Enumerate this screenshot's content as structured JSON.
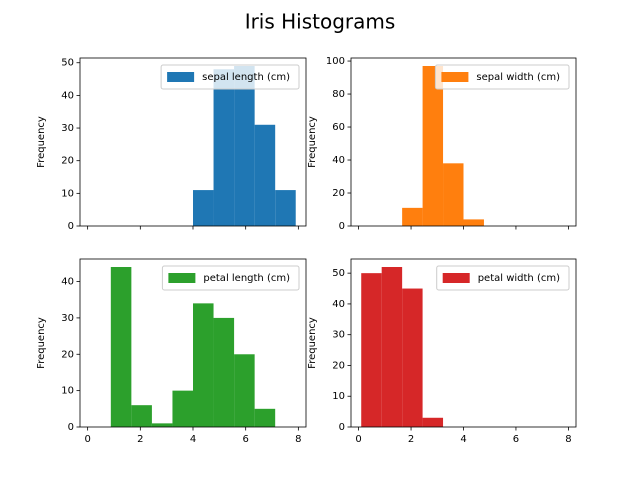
{
  "title": "Iris Histograms",
  "chart_data": [
    {
      "type": "histogram",
      "ylabel": "Frequency",
      "bins": [
        0.1,
        0.88,
        1.66,
        2.44,
        3.22,
        4.0,
        4.78,
        5.56,
        6.34,
        7.12,
        7.9
      ],
      "series": [
        {
          "name": "sepal length (cm)",
          "color": "#1f77b4",
          "values": [
            0,
            0,
            0,
            0,
            0,
            11,
            48,
            49,
            31,
            11
          ]
        }
      ],
      "xlim": [
        -0.29,
        8.29
      ],
      "xticks": [
        0,
        2,
        4,
        6,
        8
      ],
      "xtick_labels": false,
      "ylim": [
        0,
        51.45
      ],
      "yticks": [
        0,
        10,
        20,
        30,
        40,
        50
      ],
      "legend": "upper right"
    },
    {
      "type": "histogram",
      "ylabel": "Frequency",
      "bins": [
        0.1,
        0.88,
        1.66,
        2.44,
        3.22,
        4.0,
        4.78,
        5.56,
        6.34,
        7.12,
        7.9
      ],
      "series": [
        {
          "name": "sepal width (cm)",
          "color": "#ff7f0e",
          "values": [
            0,
            0,
            11,
            97,
            38,
            4,
            0,
            0,
            0,
            0
          ]
        }
      ],
      "xlim": [
        -0.29,
        8.29
      ],
      "xticks": [
        0,
        2,
        4,
        6,
        8
      ],
      "xtick_labels": false,
      "ylim": [
        0,
        101.85
      ],
      "yticks": [
        0,
        20,
        40,
        60,
        80,
        100
      ],
      "legend": "upper right"
    },
    {
      "type": "histogram",
      "ylabel": "Frequency",
      "bins": [
        0.1,
        0.88,
        1.66,
        2.44,
        3.22,
        4.0,
        4.78,
        5.56,
        6.34,
        7.12,
        7.9
      ],
      "series": [
        {
          "name": "petal length (cm)",
          "color": "#2ca02c",
          "values": [
            0,
            44,
            6,
            1,
            10,
            34,
            30,
            20,
            5,
            0
          ]
        }
      ],
      "xlim": [
        -0.29,
        8.29
      ],
      "xticks": [
        0,
        2,
        4,
        6,
        8
      ],
      "xtick_labels": true,
      "ylim": [
        0,
        46.2
      ],
      "yticks": [
        0,
        10,
        20,
        30,
        40
      ],
      "legend": "upper right"
    },
    {
      "type": "histogram",
      "ylabel": "Frequency",
      "bins": [
        0.1,
        0.88,
        1.66,
        2.44,
        3.22,
        4.0,
        4.78,
        5.56,
        6.34,
        7.12,
        7.9
      ],
      "series": [
        {
          "name": "petal width (cm)",
          "color": "#d62728",
          "values": [
            50,
            52,
            45,
            3,
            0,
            0,
            0,
            0,
            0,
            0
          ]
        }
      ],
      "xlim": [
        -0.29,
        8.29
      ],
      "xticks": [
        0,
        2,
        4,
        6,
        8
      ],
      "xtick_labels": true,
      "ylim": [
        0,
        54.6
      ],
      "yticks": [
        0,
        10,
        20,
        30,
        40,
        50
      ],
      "legend": "upper right"
    }
  ]
}
